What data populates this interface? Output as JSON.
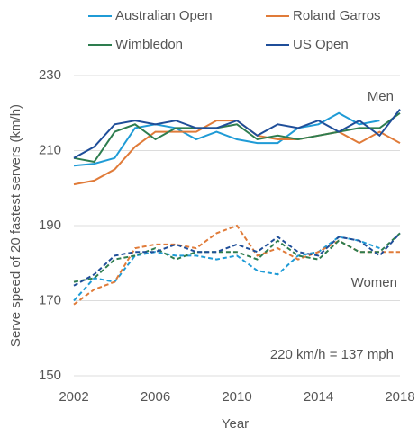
{
  "chart_data": {
    "type": "line",
    "xlabel": "Year",
    "ylabel": "Serve speed of 20 fastest servers (km/h)",
    "x": [
      2002,
      2003,
      2004,
      2005,
      2006,
      2007,
      2008,
      2009,
      2010,
      2011,
      2012,
      2013,
      2014,
      2015,
      2016,
      2017,
      2018
    ],
    "xlim": [
      2002,
      2018
    ],
    "xticks": [
      2002,
      2006,
      2010,
      2014,
      2018
    ],
    "ylim": [
      150,
      230
    ],
    "yticks": [
      150,
      170,
      190,
      210,
      230
    ],
    "grid": true,
    "legend": "top",
    "annotations": [
      "Men",
      "Women",
      "220 km/h = 137 mph"
    ],
    "series": [
      {
        "name": "Australian Open",
        "color": "#1f9bd6",
        "dash": false,
        "values": [
          206,
          206.5,
          208,
          216,
          217,
          216,
          213,
          215,
          213,
          212,
          212,
          216,
          217,
          220,
          217,
          218,
          null
        ]
      },
      {
        "name": "Roland Garros",
        "color": "#e07b39",
        "dash": false,
        "values": [
          201,
          202,
          205,
          211,
          215,
          215,
          215,
          218,
          218,
          214,
          213,
          213,
          214,
          215,
          212,
          215,
          212
        ]
      },
      {
        "name": "Wimbledon",
        "color": "#2e7d4f",
        "dash": false,
        "values": [
          208,
          207,
          215,
          217,
          213,
          216,
          216,
          216,
          217,
          213,
          214,
          213,
          214,
          215,
          216,
          216,
          220
        ]
      },
      {
        "name": "US Open",
        "color": "#1f4e99",
        "dash": false,
        "values": [
          208,
          211,
          217,
          218,
          217,
          218,
          216,
          216,
          218,
          214,
          217,
          216,
          218,
          215,
          218,
          214,
          221
        ]
      },
      {
        "name": "Australian Open",
        "color": "#1f9bd6",
        "dash": true,
        "values": [
          170,
          176,
          175,
          182,
          183,
          182,
          182,
          181,
          182,
          178,
          177,
          182,
          183,
          187,
          186,
          184,
          null
        ]
      },
      {
        "name": "Roland Garros",
        "color": "#e07b39",
        "dash": true,
        "values": [
          169,
          173,
          175,
          184,
          185,
          185,
          184,
          188,
          190,
          182,
          184,
          181,
          183,
          186,
          183,
          183,
          183
        ]
      },
      {
        "name": "Wimbledon",
        "color": "#2e7d4f",
        "dash": true,
        "values": [
          175,
          176,
          181,
          182,
          184,
          181,
          183,
          183,
          183,
          181,
          186,
          182,
          181,
          186,
          183,
          183,
          188
        ]
      },
      {
        "name": "US Open",
        "color": "#1f4e99",
        "dash": true,
        "values": [
          174,
          177,
          182,
          183,
          183,
          185,
          183,
          183,
          185,
          183,
          187,
          183,
          182,
          187,
          186,
          182,
          188
        ]
      }
    ]
  }
}
